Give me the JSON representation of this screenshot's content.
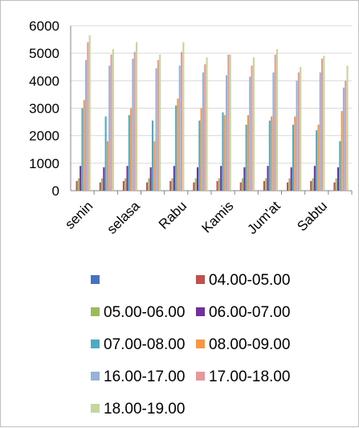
{
  "chart_data": {
    "type": "bar",
    "title": "",
    "xlabel": "",
    "ylabel": "",
    "ylim": [
      0,
      6000
    ],
    "yticks": [
      0,
      1000,
      2000,
      3000,
      4000,
      5000,
      6000
    ],
    "grid": true,
    "legend_position": "bottom",
    "categories": [
      "senin",
      "",
      "selasa",
      "",
      "Rabu",
      "",
      "Kamis",
      "",
      "Jum'at",
      "",
      "Sabtu",
      ""
    ],
    "x_tick_labels": [
      "senin",
      "selasa",
      "Rabu",
      "Kamis",
      "Jum'at",
      "Sabtu"
    ],
    "series": [
      {
        "name": "",
        "color": "#4472c4",
        "values": [
          0,
          0,
          0,
          0,
          0,
          0,
          0,
          0,
          0,
          0,
          0,
          0
        ]
      },
      {
        "name": "04.00-05.00",
        "color": "#c0504d",
        "values": [
          350,
          300,
          350,
          300,
          350,
          300,
          350,
          300,
          350,
          300,
          350,
          300
        ]
      },
      {
        "name": "05.00-06.00",
        "color": "#9bbb59",
        "values": [
          450,
          450,
          450,
          450,
          450,
          450,
          450,
          450,
          450,
          450,
          450,
          450
        ]
      },
      {
        "name": "06.00-07.00",
        "color": "#7030a0",
        "values": [
          900,
          850,
          900,
          850,
          900,
          850,
          900,
          850,
          900,
          850,
          900,
          850
        ]
      },
      {
        "name": "07.00-08.00",
        "color": "#4bacc6",
        "values": [
          3000,
          2700,
          2750,
          2550,
          3100,
          2550,
          2850,
          2400,
          2550,
          2400,
          2200,
          1800
        ]
      },
      {
        "name": "08.00-09.00",
        "color": "#f79646",
        "values": [
          3300,
          1800,
          3000,
          1800,
          3350,
          3000,
          2750,
          2750,
          2700,
          2700,
          2400,
          2900
        ]
      },
      {
        "name": "16.00-17.00",
        "color": "#95b3d7",
        "values": [
          4750,
          4550,
          4800,
          4450,
          4550,
          4300,
          4200,
          4150,
          4300,
          4000,
          4300,
          3750
        ]
      },
      {
        "name": "17.00-18.00",
        "color": "#e6999a",
        "values": [
          5400,
          4950,
          5050,
          4750,
          5050,
          4600,
          4950,
          4550,
          4950,
          4300,
          4800,
          4000
        ]
      },
      {
        "name": "18.00-19.00",
        "color": "#c3d69b",
        "values": [
          5650,
          5150,
          5400,
          4950,
          5400,
          4850,
          4950,
          4850,
          5150,
          4500,
          4900,
          4550
        ]
      }
    ]
  }
}
